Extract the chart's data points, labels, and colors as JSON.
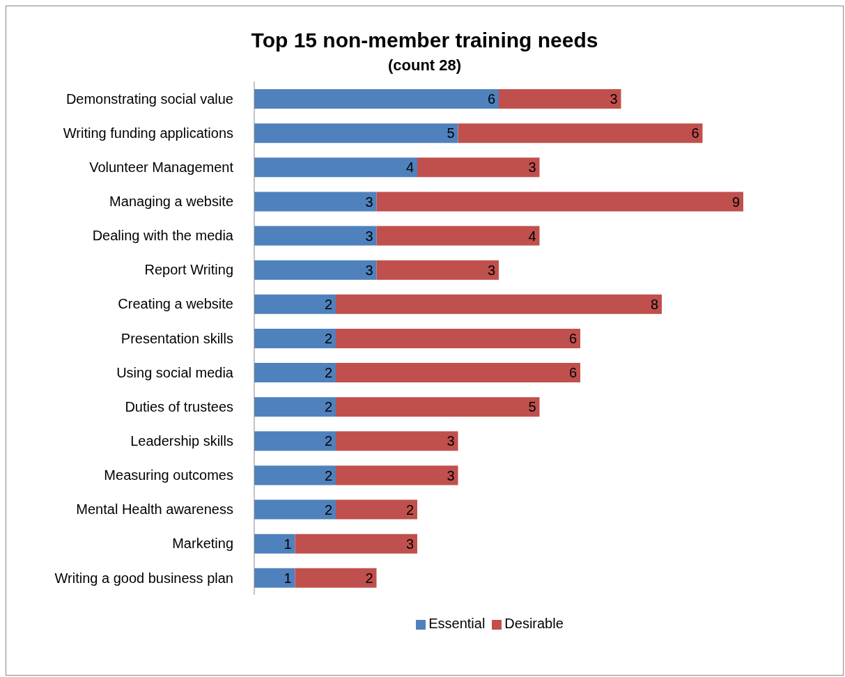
{
  "chart_data": {
    "type": "bar",
    "title": "Top 15 non-member training needs",
    "subtitle": "(count 28)",
    "orientation": "horizontal",
    "stacked": true,
    "data_labels": true,
    "legend": "bottom",
    "tick_labels": "y",
    "categories": [
      "Demonstrating social value",
      "Writing funding applications",
      "Volunteer Management",
      "Managing a website",
      "Dealing with the media",
      "Report Writing",
      "Creating a website",
      "Presentation skills",
      "Using social media",
      "Duties of trustees",
      "Leadership skills",
      "Measuring outcomes",
      "Mental Health awareness",
      "Marketing",
      "Writing a good business plan"
    ],
    "series": [
      {
        "name": "Essential",
        "color": "#4f81bd",
        "values": [
          6,
          5,
          4,
          3,
          3,
          3,
          2,
          2,
          2,
          2,
          2,
          2,
          2,
          1,
          1
        ]
      },
      {
        "name": "Desirable",
        "color": "#c0504d",
        "values": [
          3,
          6,
          3,
          9,
          4,
          3,
          8,
          6,
          6,
          5,
          3,
          3,
          2,
          3,
          2
        ]
      }
    ]
  }
}
